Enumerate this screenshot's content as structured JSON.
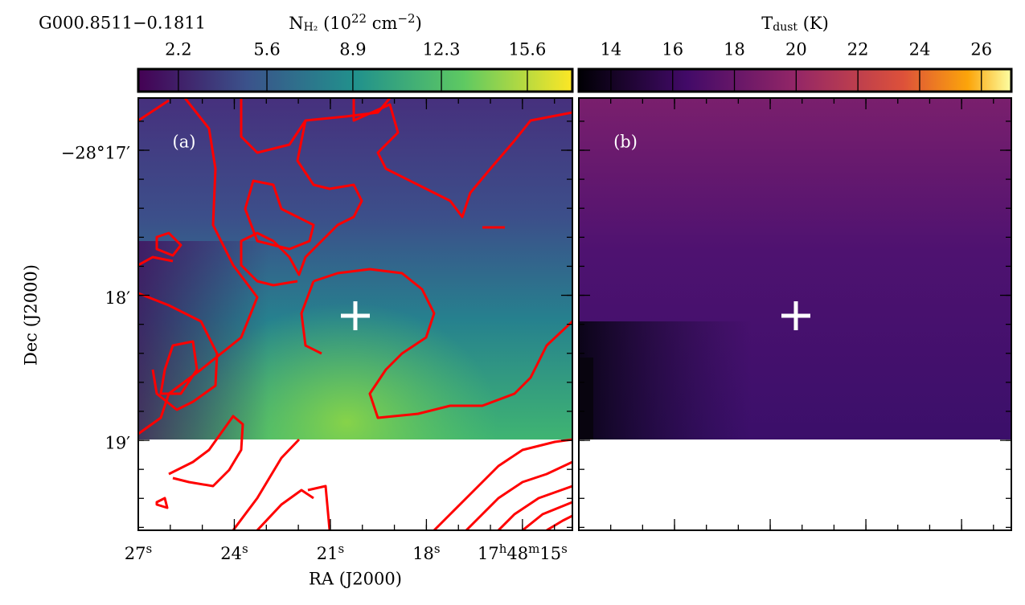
{
  "figure": {
    "source": "G000.8511−0.1811",
    "panels": [
      {
        "label": "(a)",
        "colorbar": {
          "title": [
            {
              "t": "N"
            },
            {
              "sub": "H₂"
            },
            {
              "t": " (10"
            },
            {
              "sup": "22"
            },
            {
              "t": " cm"
            },
            {
              "sup": "−2"
            },
            {
              "t": ")"
            }
          ],
          "lim": [
            0.66,
            17.33
          ],
          "ticks": [
            2.2,
            5.6,
            8.9,
            12.3,
            15.6
          ]
        }
      },
      {
        "label": "(b)",
        "colorbar": {
          "title": [
            {
              "t": "T"
            },
            {
              "sub": "dust"
            },
            {
              "t": " (K)"
            }
          ],
          "lim": [
            12.96,
            26.97
          ],
          "ticks": [
            14,
            16,
            18,
            20,
            22,
            24,
            26
          ]
        }
      }
    ],
    "xaxis": {
      "title": "RA (J2000)",
      "lim": [
        27,
        13.44
      ],
      "ticks": [
        {
          "value": 27,
          "parts": [
            {
              "t": "27"
            },
            {
              "sup": "s"
            }
          ]
        },
        {
          "value": 24,
          "parts": [
            {
              "t": "24"
            },
            {
              "sup": "s"
            }
          ]
        },
        {
          "value": 21,
          "parts": [
            {
              "t": "21"
            },
            {
              "sup": "s"
            }
          ]
        },
        {
          "value": 18,
          "parts": [
            {
              "t": "18"
            },
            {
              "sup": "s"
            }
          ]
        },
        {
          "value": 15,
          "parts": [
            {
              "t": "17"
            },
            {
              "sup": "h"
            },
            {
              "t": "48"
            },
            {
              "sup": "m"
            },
            {
              "t": "15"
            },
            {
              "sup": "s"
            }
          ]
        }
      ]
    },
    "yaxis": {
      "title": "Dec (J2000)",
      "lim": [
        16.64,
        19.62
      ],
      "ticks": [
        {
          "value": 17,
          "label": "−28°17′"
        },
        {
          "value": 18,
          "label": "18′"
        },
        {
          "value": 19,
          "label": "19′"
        }
      ]
    }
  }
}
